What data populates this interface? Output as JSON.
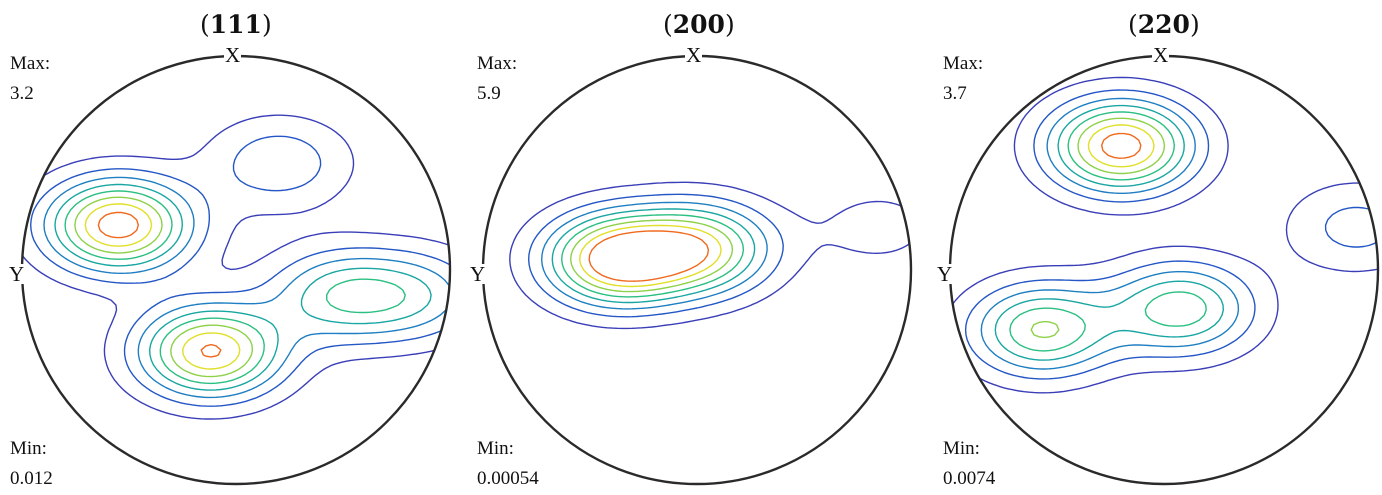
{
  "chart_data": [
    {
      "type": "contour",
      "title": "(111)",
      "title_index": "111",
      "max_label": "Max:",
      "max_value": "3.2",
      "min_label": "Min:",
      "min_value": "0.012",
      "axis_top": "X",
      "axis_left": "Y",
      "peaks": [
        {
          "u": -0.55,
          "v": 0.21,
          "value": 3.2
        },
        {
          "u": -0.12,
          "v": -0.38,
          "value": 3.0
        },
        {
          "u": 0.48,
          "v": -0.12,
          "value": 1.6
        },
        {
          "u": 0.85,
          "v": -0.12,
          "value": 1.2
        },
        {
          "u": 0.2,
          "v": 0.5,
          "value": 1.0
        }
      ],
      "levels": 8
    },
    {
      "type": "contour",
      "title": "(200)",
      "title_index": "200",
      "max_label": "Max:",
      "max_value": "5.9",
      "min_label": "Min:",
      "min_value": "0.00054",
      "axis_top": "X",
      "axis_left": "Y",
      "peaks": [
        {
          "u": -0.38,
          "v": 0.05,
          "value": 5.9
        },
        {
          "u": 0.02,
          "v": 0.1,
          "value": 4.5
        },
        {
          "u": 0.85,
          "v": 0.2,
          "value": 0.9
        }
      ],
      "levels": 8
    },
    {
      "type": "contour",
      "title": "(220)",
      "title_index": "220",
      "max_label": "Max:",
      "max_value": "3.7",
      "min_label": "Min:",
      "min_value": "0.0074",
      "axis_top": "X",
      "axis_left": "Y",
      "peaks": [
        {
          "u": -0.2,
          "v": 0.58,
          "value": 3.7
        },
        {
          "u": -0.57,
          "v": -0.28,
          "value": 2.6
        },
        {
          "u": 0.08,
          "v": -0.18,
          "value": 2.4
        },
        {
          "u": 0.9,
          "v": 0.2,
          "value": 1.0
        }
      ],
      "levels": 8
    }
  ],
  "colors": {
    "circle": "#2a2a2a",
    "levels": [
      "#3a3fb8",
      "#2457c6",
      "#1f7fc2",
      "#1aa6a2",
      "#2bbf82",
      "#8ed14a",
      "#e0df2a",
      "#f06a1e"
    ]
  }
}
